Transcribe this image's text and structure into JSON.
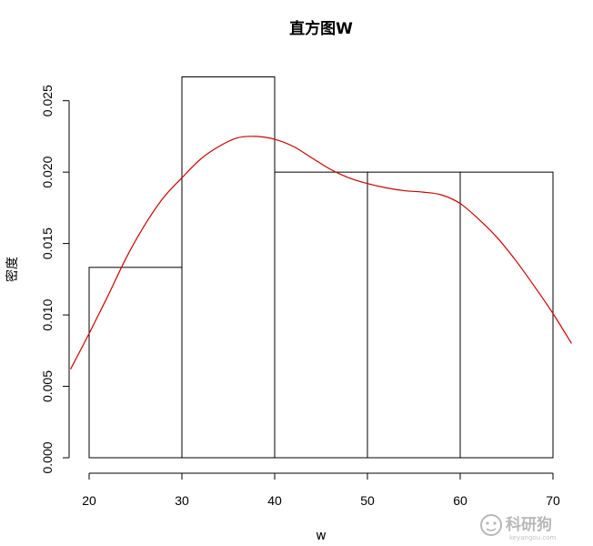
{
  "chart_data": {
    "type": "histogram",
    "title": "直方图W",
    "xlabel": "w",
    "ylabel": "密度",
    "bins": [
      {
        "from": 20,
        "to": 30,
        "density": 0.01333
      },
      {
        "from": 30,
        "to": 40,
        "density": 0.02667
      },
      {
        "from": 40,
        "to": 50,
        "density": 0.02
      },
      {
        "from": 50,
        "to": 60,
        "density": 0.02
      },
      {
        "from": 60,
        "to": 70,
        "density": 0.02
      }
    ],
    "x_ticks": [
      20,
      30,
      40,
      50,
      60,
      70
    ],
    "x_tick_labels": [
      "20",
      "30",
      "40",
      "50",
      "60",
      "70"
    ],
    "y_ticks": [
      0.0,
      0.005,
      0.01,
      0.015,
      0.02,
      0.025
    ],
    "y_tick_labels": [
      "0.000",
      "0.005",
      "0.010",
      "0.015",
      "0.020",
      "0.025"
    ],
    "xlim": [
      18,
      72
    ],
    "ylim": [
      0,
      0.0267
    ],
    "grid": false,
    "density_curve": {
      "color": "#cc0000",
      "x": [
        18,
        20,
        22,
        24,
        26,
        28,
        30,
        32,
        34,
        36,
        38,
        40,
        42,
        44,
        46,
        48,
        50,
        52,
        54,
        56,
        58,
        60,
        62,
        64,
        66,
        68,
        70,
        72
      ],
      "y": [
        0.0062,
        0.0087,
        0.0113,
        0.014,
        0.0163,
        0.0182,
        0.0196,
        0.0209,
        0.0218,
        0.0224,
        0.0225,
        0.0223,
        0.0218,
        0.021,
        0.0202,
        0.0196,
        0.0192,
        0.0189,
        0.0187,
        0.0186,
        0.0184,
        0.0178,
        0.0167,
        0.0154,
        0.0138,
        0.012,
        0.0101,
        0.008
      ]
    }
  },
  "watermark": {
    "brand_text": "科研狗",
    "domain_text": "keyangou.com"
  }
}
